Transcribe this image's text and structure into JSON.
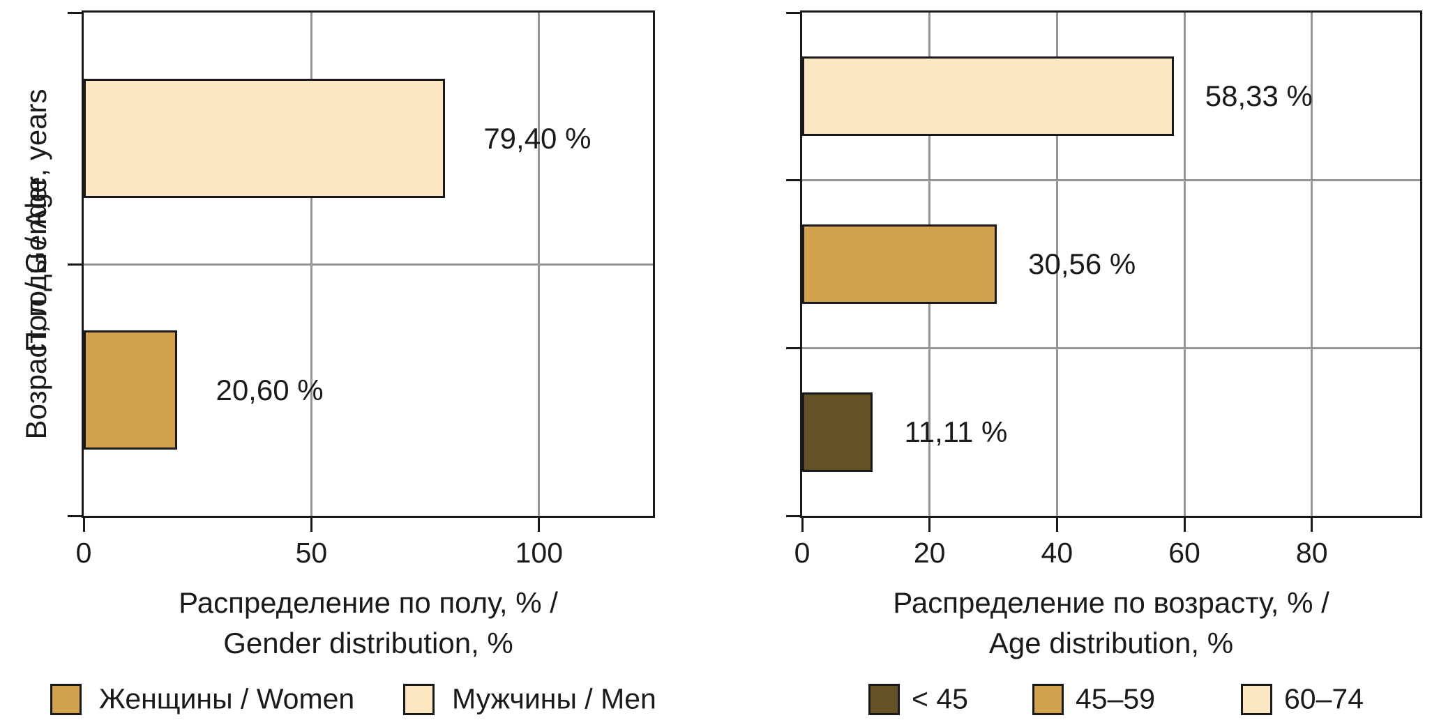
{
  "figure": {
    "background": "#ffffff",
    "axis_color": "#1a1a1a",
    "gridline_color": "#969696"
  },
  "chart_data": [
    {
      "type": "bar",
      "orientation": "horizontal",
      "title": "",
      "ylabel": "Пол / Gender",
      "xlabel_lines": [
        "Распределение по полу, % /",
        "Gender distribution, %"
      ],
      "categories": [
        "Мужчины / Men",
        "Женщины / Women"
      ],
      "values": [
        79.4,
        20.6
      ],
      "value_labels": [
        "79,40 %",
        "20,60 %"
      ],
      "bar_colors": [
        "#FBE8C2",
        "#D2A24F"
      ],
      "xlim": [
        0,
        125
      ],
      "xticks": [
        0,
        50,
        100
      ],
      "xtick_labels": [
        "0",
        "50",
        "100"
      ],
      "grid": true,
      "legend_position": "bottom",
      "legend": [
        {
          "label": "Женщины / Women",
          "color": "#D2A24F"
        },
        {
          "label": "Мужчины / Men",
          "color": "#FBE8C2"
        }
      ]
    },
    {
      "type": "bar",
      "orientation": "horizontal",
      "title": "",
      "ylabel": "Возраст, годы / Age, years",
      "xlabel_lines": [
        "Распределение по возрасту, % /",
        "Age distribution, %"
      ],
      "categories": [
        "60–74",
        "45–59",
        "< 45"
      ],
      "values": [
        58.33,
        30.56,
        11.11
      ],
      "value_labels": [
        "58,33 %",
        "30,56 %",
        "11,11 %"
      ],
      "bar_colors": [
        "#FBE8C2",
        "#D2A24F",
        "#645126"
      ],
      "xlim": [
        0,
        97
      ],
      "xticks": [
        0,
        20,
        40,
        60,
        80
      ],
      "xtick_labels": [
        "0",
        "20",
        "40",
        "60",
        "80"
      ],
      "grid": true,
      "legend_position": "bottom",
      "legend": [
        {
          "label": "< 45",
          "color": "#645126"
        },
        {
          "label": "45–59",
          "color": "#D2A24F"
        },
        {
          "label": "60–74",
          "color": "#FBE8C2"
        }
      ]
    }
  ]
}
